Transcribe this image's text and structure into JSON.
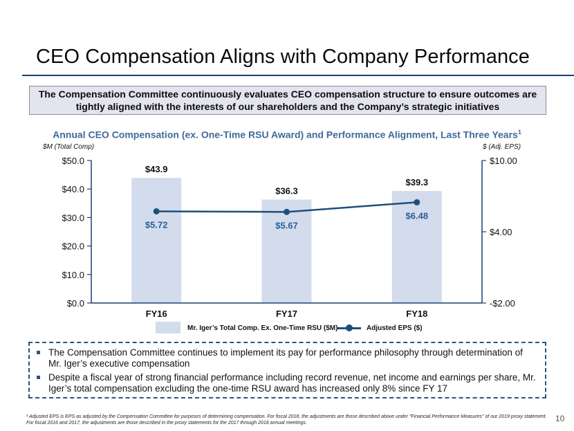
{
  "title": "CEO Compensation Aligns with Company Performance",
  "callout": "The Compensation Committee continuously evaluates CEO compensation structure to ensure outcomes are tightly aligned with the interests of our shareholders and the Company’s strategic initiatives",
  "chart_title": "Annual CEO Compensation (ex. One-Time RSU Award) and Performance Alignment, Last Three Years",
  "chart_title_sup": "1",
  "colors": {
    "bar": "#d3dcec",
    "line": "#1e4f7a",
    "axis": "#1c3f6e",
    "eps_label": "#2a5f95"
  },
  "chart_data": {
    "type": "bar",
    "categories": [
      "FY16",
      "FY17",
      "FY18"
    ],
    "ylabel": "$M (Total Comp)",
    "y2label": "$ (Adj. EPS)",
    "ylim": [
      0,
      50
    ],
    "y2lim": [
      -2,
      10
    ],
    "y_ticks": [
      "$50.0",
      "$40.0",
      "$30.0",
      "$20.0",
      "$10.0",
      "$0.0"
    ],
    "y2_ticks": [
      "$10.00",
      "$4.00",
      "-$2.00"
    ],
    "series": [
      {
        "name": "Mr. Iger’s Total Comp. Ex. One-Time RSU ($M)",
        "type": "bar",
        "axis": "left",
        "values": [
          43.9,
          36.3,
          39.3
        ],
        "labels": [
          "$43.9",
          "$36.3",
          "$39.3"
        ]
      },
      {
        "name": "Adjusted EPS ($)",
        "type": "line",
        "axis": "right",
        "values": [
          5.72,
          5.67,
          6.48
        ],
        "labels": [
          "$5.72",
          "$5.67",
          "$6.48"
        ]
      }
    ]
  },
  "bullets": [
    "The Compensation Committee continues to implement its pay for performance philosophy through determination of Mr. Iger’s executive compensation",
    "Despite a fiscal year of strong financial performance including record revenue, net income and earnings per share, Mr. Iger’s total compensation excluding the one-time RSU award has increased only 8% since FY 17"
  ],
  "footnote": "¹ Adjusted EPS is EPS as adjusted by the Compensation Committee for purposes of determining compensation. For fiscal 2018, the adjustments are those described above under \"Financial Performance Measures\" of our 2019 proxy statement. For fiscal 2016 and 2017, the adjustments are those described in the proxy statements for the 2017 through 2018 annual meetings.",
  "page_number": "10"
}
